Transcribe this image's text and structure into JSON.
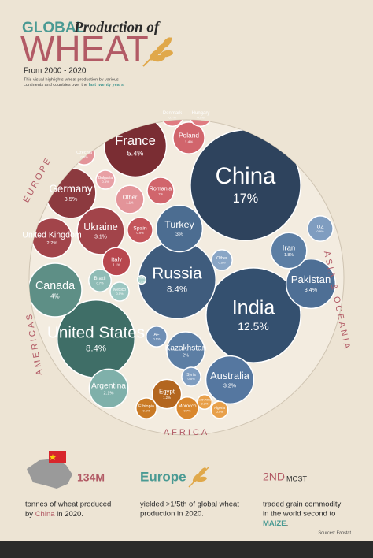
{
  "header": {
    "title_1": "GLOBAL",
    "title_2": "Production of",
    "title_3": "WHEAT",
    "period": "From 2000 - 2020",
    "description_1": "This visual highlights wheat production by various",
    "description_2": "continents and countries over the ",
    "description_highlight": "last twenty years."
  },
  "chart_data": {
    "type": "voronoi",
    "categories": [
      "China",
      "India",
      "Russia",
      "United States",
      "France",
      "Germany",
      "Ukraine",
      "Canada",
      "Turkey",
      "Pakistan",
      "Australia",
      "Kazakhstan",
      "Argentina",
      "Iran",
      "United Kingdom",
      "Poland",
      "Egypt",
      "Italy",
      "Romania",
      "Other",
      "Spain",
      "UZ",
      "Other",
      "Brazil",
      "Denmark",
      "Hungary",
      "Morocco",
      "Czechia",
      "Ethiopia",
      "AF",
      "Bulgaria",
      "Mexico",
      "Syria",
      "Algeria",
      "South Africa",
      "Other"
    ],
    "values": [
      17,
      12.5,
      8.4,
      8.4,
      5.4,
      3.5,
      3.1,
      4,
      3,
      3.4,
      3.2,
      2,
      2.1,
      1.8,
      2.2,
      1.4,
      1.2,
      1.1,
      1,
      1.1,
      0.9,
      0.9,
      0.6,
      0.7,
      0.7,
      0.7,
      0.7,
      0.6,
      0.6,
      0.6,
      0.5,
      0.5,
      0.5,
      0.4,
      0.3,
      0.1
    ],
    "value_labels": [
      "17%",
      "12.5%",
      "8.4%",
      "8.4%",
      "5.4%",
      "3.5%",
      "3.1%",
      "4%",
      "3%",
      "3.4%",
      "3.2%",
      "2%",
      "2.1%",
      "1.8%",
      "2.2%",
      "1.4%",
      "1.2%",
      "1.1%",
      "1%",
      "1.1%",
      "0.9%",
      "0.9%",
      "0.6%",
      "0.7%",
      "0.7%",
      "0.7%",
      "0.7%",
      "0.6%",
      "0.6%",
      "0.6%",
      "0.5%",
      "0.5%",
      "0.5%",
      "0.4%",
      "0.3%",
      "0.1%"
    ],
    "colors": [
      "#2e435d",
      "#34506f",
      "#3f5c7d",
      "#3f6e67",
      "#7a2d33",
      "#8c3a3f",
      "#a2444a",
      "#5e8f86",
      "#4c6d91",
      "#4e6f95",
      "#5577a0",
      "#5c7ea4",
      "#7fb0aa",
      "#5c7ea4",
      "#a2444a",
      "#d1656c",
      "#b3661f",
      "#b8474e",
      "#d1656c",
      "#e39499",
      "#c4555b",
      "#7f9dc0",
      "#8aa6c6",
      "#8fbcb6",
      "#e07c82",
      "#e07c82",
      "#d9872d",
      "#e39499",
      "#c97a25",
      "#6f8fb5",
      "#e8a0a5",
      "#9cc7c2",
      "#7f9dc0",
      "#e8a04a",
      "#e8a04a",
      "#a9cfca"
    ],
    "region_labels": [
      "EUROPE",
      "ASIA & OCEANIA",
      "AMERICAS",
      "AFRICA"
    ]
  },
  "stats": {
    "china_value": "134M",
    "china_text_1": "tonnes of wheat produced",
    "china_text_2": "by ",
    "china_name": "China",
    "china_text_3": " in  2020.",
    "europe_title": "Europe",
    "europe_text_1": "yielded >1/5th of global wheat",
    "europe_text_2": "production in 2020.",
    "rank": "2ND",
    "rank_word": "MOST",
    "rank_text_1": "traded grain commodity",
    "rank_text_2": "in the world second to",
    "rank_highlight": "MAIZE",
    "rank_end": ".",
    "source": "Sources: Faostat"
  }
}
